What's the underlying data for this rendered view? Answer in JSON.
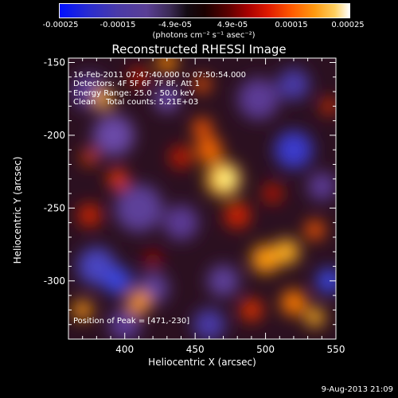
{
  "colorbar": {
    "ticks": [
      "-0.00025",
      "-0.00015",
      "-4.9e-05",
      "4.9e-05",
      "0.00015",
      "0.00025"
    ],
    "unit_label": "(photons cm⁻² s⁻¹ asec⁻²)"
  },
  "chart_data": {
    "type": "heatmap",
    "title": "Reconstructed RHESSI Image",
    "xlabel": "Heliocentric X (arcsec)",
    "ylabel": "Heliocentric Y (arcsec)",
    "xlim": [
      360,
      550
    ],
    "ylim": [
      -340,
      -147
    ],
    "x_ticks": [
      "400",
      "450",
      "500",
      "550"
    ],
    "y_ticks": [
      "-150",
      "-200",
      "-250",
      "-300"
    ],
    "color_range": [
      -0.00025,
      0.00025
    ],
    "annotations": {
      "time_range": "16-Feb-2011 07:47:40.000 to 07:50:54.000",
      "detectors": "Detectors: 4F 5F 6F 7F 8F, Att 1",
      "energy_range": "Energy Range: 25.0 - 50.0 keV",
      "clean_counts": "Clean    Total counts: 5.21E+03",
      "peak_position": "Position of Peak = [471,-230]"
    },
    "peak": [
      471,
      -230
    ],
    "total_counts": "5.21E+03"
  },
  "footer": {
    "date": "9-Aug-2013 21:09"
  }
}
